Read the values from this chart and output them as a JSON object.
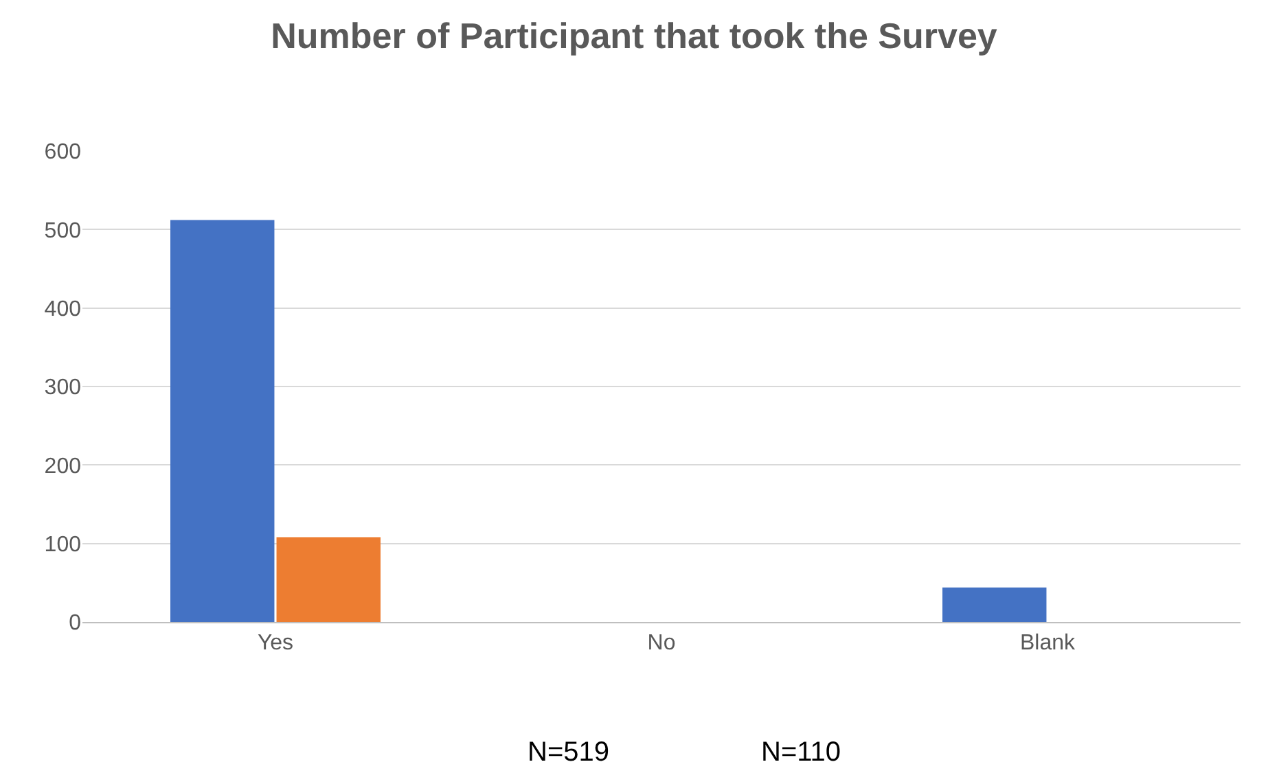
{
  "chart_data": {
    "type": "bar",
    "title": "Number of Participant that took the Survey",
    "categories": [
      "Yes",
      "No",
      "Blank"
    ],
    "series": [
      {
        "color": "#4472c4",
        "values": [
          512,
          0,
          44
        ]
      },
      {
        "color": "#ed7d31",
        "values": [
          108,
          0,
          0
        ]
      }
    ],
    "ylim": [
      0,
      600
    ],
    "yticks": [
      0,
      100,
      200,
      300,
      400,
      500,
      600
    ],
    "grid": "y",
    "annotations": [
      "N=519",
      "N=110"
    ]
  }
}
